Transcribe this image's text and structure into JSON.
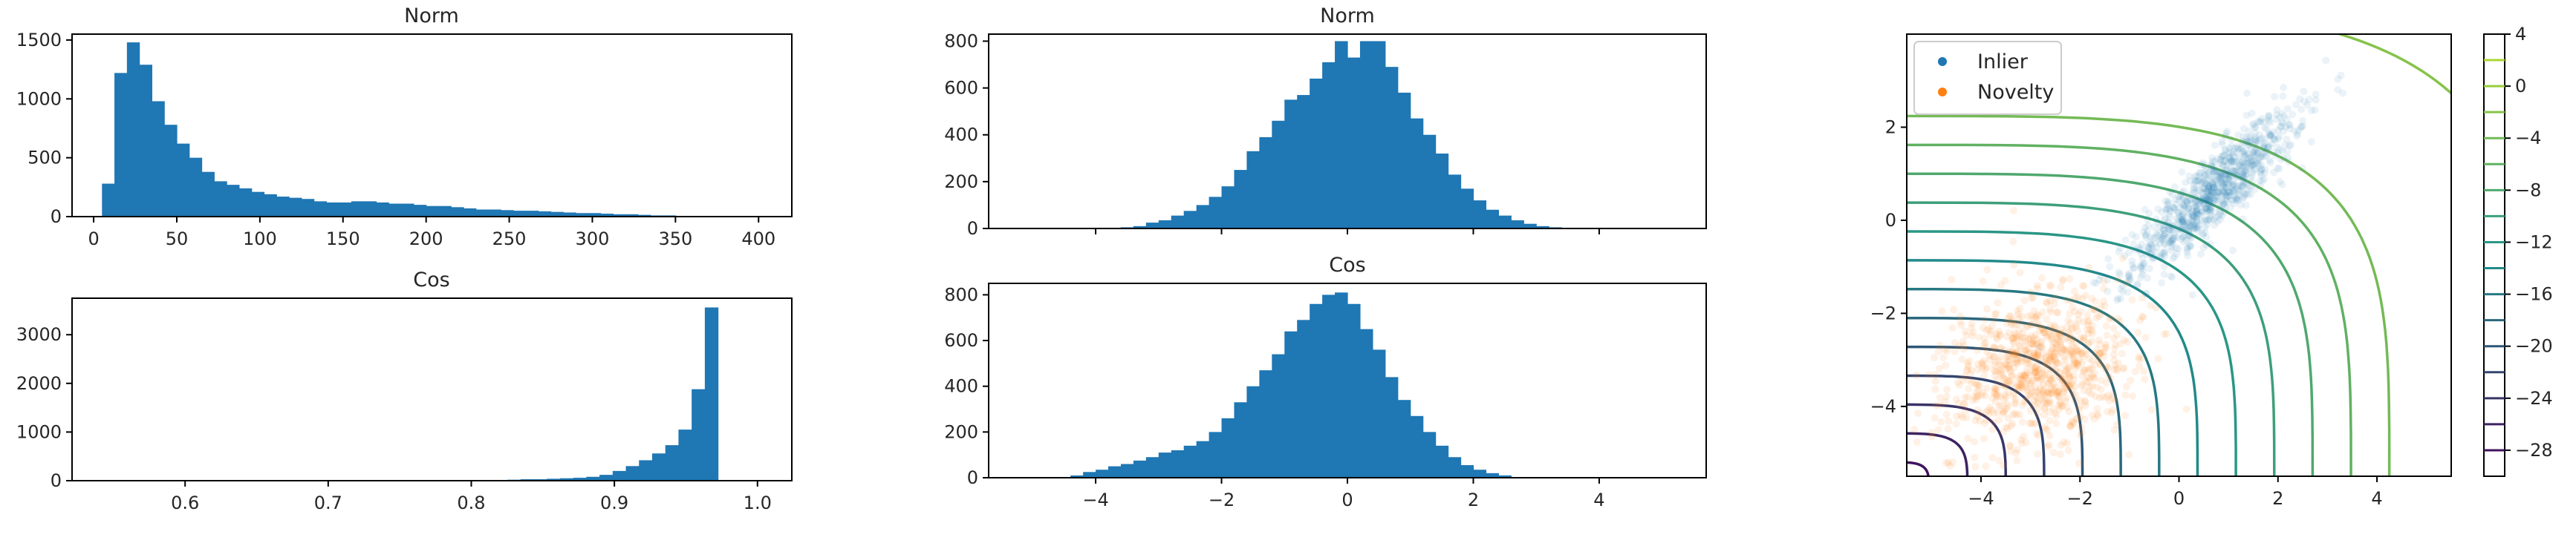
{
  "colors": {
    "bar": "#1f77b4",
    "inlier": "#1f77b4",
    "novelty": "#ff7f0e",
    "contour_low": "#440154",
    "contour_mid": "#21918c",
    "contour_high": "#bddf26"
  },
  "chart_data": [
    {
      "type": "bar",
      "id": "norm_raw",
      "title": "Norm",
      "xlim": [
        -13,
        420
      ],
      "ylim": [
        0,
        1550
      ],
      "xticks": [
        "0",
        "50",
        "100",
        "150",
        "200",
        "250",
        "300",
        "350",
        "400"
      ],
      "xtick_values": [
        0,
        50,
        100,
        150,
        200,
        250,
        300,
        350,
        400
      ],
      "yticks": [
        "0",
        "500",
        "1000",
        "1500"
      ],
      "ytick_values": [
        0,
        500,
        1000,
        1500
      ],
      "bin_start": 5,
      "bin_width": 7.5,
      "values": [
        280,
        1220,
        1480,
        1290,
        980,
        780,
        620,
        500,
        380,
        300,
        270,
        240,
        210,
        190,
        170,
        160,
        150,
        130,
        120,
        120,
        130,
        130,
        120,
        110,
        110,
        100,
        90,
        90,
        80,
        70,
        60,
        60,
        55,
        50,
        50,
        45,
        40,
        35,
        30,
        30,
        25,
        20,
        20,
        15,
        10,
        10
      ]
    },
    {
      "type": "bar",
      "id": "cos_raw",
      "title": "Cos",
      "xlim": [
        0.521,
        1.024
      ],
      "ylim": [
        0,
        3750
      ],
      "xticks": [
        "0.6",
        "0.7",
        "0.8",
        "0.9",
        "1.0"
      ],
      "xtick_values": [
        0.6,
        0.7,
        0.8,
        0.9,
        1.0
      ],
      "yticks": [
        "0",
        "1000",
        "2000",
        "3000"
      ],
      "ytick_values": [
        0,
        1000,
        2000,
        3000
      ],
      "bin_start": 0.54,
      "bin_width": 0.0092,
      "values": [
        5,
        0,
        0,
        0,
        0,
        0,
        0,
        0,
        0,
        0,
        0,
        0,
        0,
        0,
        0,
        0,
        0,
        0,
        0,
        0,
        0,
        0,
        0,
        0,
        0,
        0,
        0,
        0,
        0,
        0,
        0,
        20,
        30,
        30,
        40,
        50,
        60,
        80,
        120,
        200,
        300,
        420,
        560,
        730,
        1050,
        1880,
        3560
      ]
    },
    {
      "type": "bar",
      "id": "norm_std",
      "title": "Norm",
      "xlim": [
        -5.7,
        5.7
      ],
      "ylim": [
        0,
        830
      ],
      "xticks": [],
      "xtick_values": [
        -4,
        -2,
        0,
        2,
        4
      ],
      "yticks": [
        "0",
        "200",
        "400",
        "600",
        "800"
      ],
      "ytick_values": [
        0,
        200,
        400,
        600,
        800
      ],
      "bin_start": -3.6,
      "bin_width": 0.2,
      "values": [
        5,
        10,
        25,
        35,
        55,
        75,
        100,
        135,
        180,
        250,
        330,
        390,
        460,
        550,
        570,
        640,
        710,
        800,
        730,
        800,
        800,
        690,
        580,
        470,
        400,
        320,
        230,
        170,
        120,
        80,
        55,
        35,
        20,
        10,
        5
      ]
    },
    {
      "type": "bar",
      "id": "cos_std",
      "title": "Cos",
      "xlim": [
        -5.7,
        5.7
      ],
      "ylim": [
        0,
        850
      ],
      "xticks": [
        "−4",
        "−2",
        "0",
        "2",
        "4"
      ],
      "xtick_values": [
        -4,
        -2,
        0,
        2,
        4
      ],
      "yticks": [
        "0",
        "200",
        "400",
        "600",
        "800"
      ],
      "ytick_values": [
        0,
        200,
        400,
        600,
        800
      ],
      "bin_start": -4.4,
      "bin_width": 0.2,
      "values": [
        10,
        25,
        35,
        50,
        60,
        75,
        90,
        110,
        120,
        140,
        160,
        200,
        260,
        330,
        400,
        470,
        540,
        640,
        690,
        760,
        800,
        810,
        760,
        650,
        560,
        440,
        340,
        270,
        200,
        140,
        90,
        55,
        35,
        20,
        10
      ]
    },
    {
      "type": "scatter",
      "id": "novelty_map",
      "xlim": [
        -5.5,
        5.5
      ],
      "ylim": [
        -5.5,
        4
      ],
      "xticks": [
        "−4",
        "−2",
        "0",
        "2",
        "4"
      ],
      "xtick_values": [
        -4,
        -2,
        0,
        2,
        4
      ],
      "yticks": [
        "−4",
        "−2",
        "0",
        "2"
      ],
      "ytick_values": [
        -4,
        -2,
        0,
        2
      ],
      "series": [
        {
          "name": "Inlier",
          "center": [
            0.7,
            0.6
          ],
          "spread": [
            1.2,
            0.3
          ],
          "angle_deg": 45
        },
        {
          "name": "Novelty",
          "center": [
            -2.8,
            -3.1
          ],
          "spread": [
            1.0,
            0.8
          ],
          "angle_deg": 30
        }
      ],
      "legend_position": "top-left",
      "contour_levels": [
        -28,
        -26,
        -24,
        -22,
        -20,
        -18,
        -16,
        -14,
        -12,
        -10,
        -8,
        -6,
        -4,
        -2,
        0,
        2
      ],
      "colorbar": {
        "range": [
          -30,
          4
        ],
        "ticks": [
          "4",
          "0",
          "−4",
          "−8",
          "−12",
          "−16",
          "−20",
          "−24",
          "−28"
        ],
        "tick_values": [
          4,
          0,
          -4,
          -8,
          -12,
          -16,
          -20,
          -24,
          -28
        ]
      }
    }
  ]
}
